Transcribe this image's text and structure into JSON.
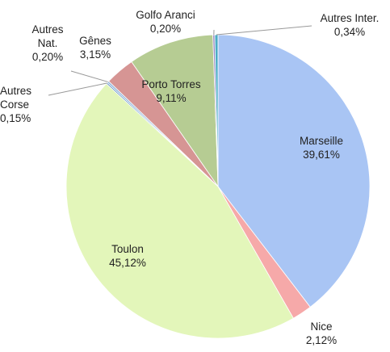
{
  "chart_data": {
    "type": "pie",
    "categories": [
      "Marseille",
      "Nice",
      "Toulon",
      "Autres Corse",
      "Autres Nat.",
      "Gênes",
      "Porto Torres",
      "Golfo Aranci",
      "Autres Inter."
    ],
    "values": [
      39.61,
      2.12,
      45.12,
      0.15,
      0.2,
      3.15,
      9.11,
      0.2,
      0.34
    ],
    "value_labels": [
      "39,61%",
      "2,12%",
      "45,12%",
      "0,15%",
      "0,20%",
      "3,15%",
      "9,11%",
      "0,20%",
      "0,34%"
    ],
    "colors": [
      "#a9c5f4",
      "#f6a9a9",
      "#e3f6ba",
      "#4f81bd",
      "#8db3dc",
      "#d69594",
      "#b6cc93",
      "#9a86c2",
      "#4bacc6"
    ]
  }
}
